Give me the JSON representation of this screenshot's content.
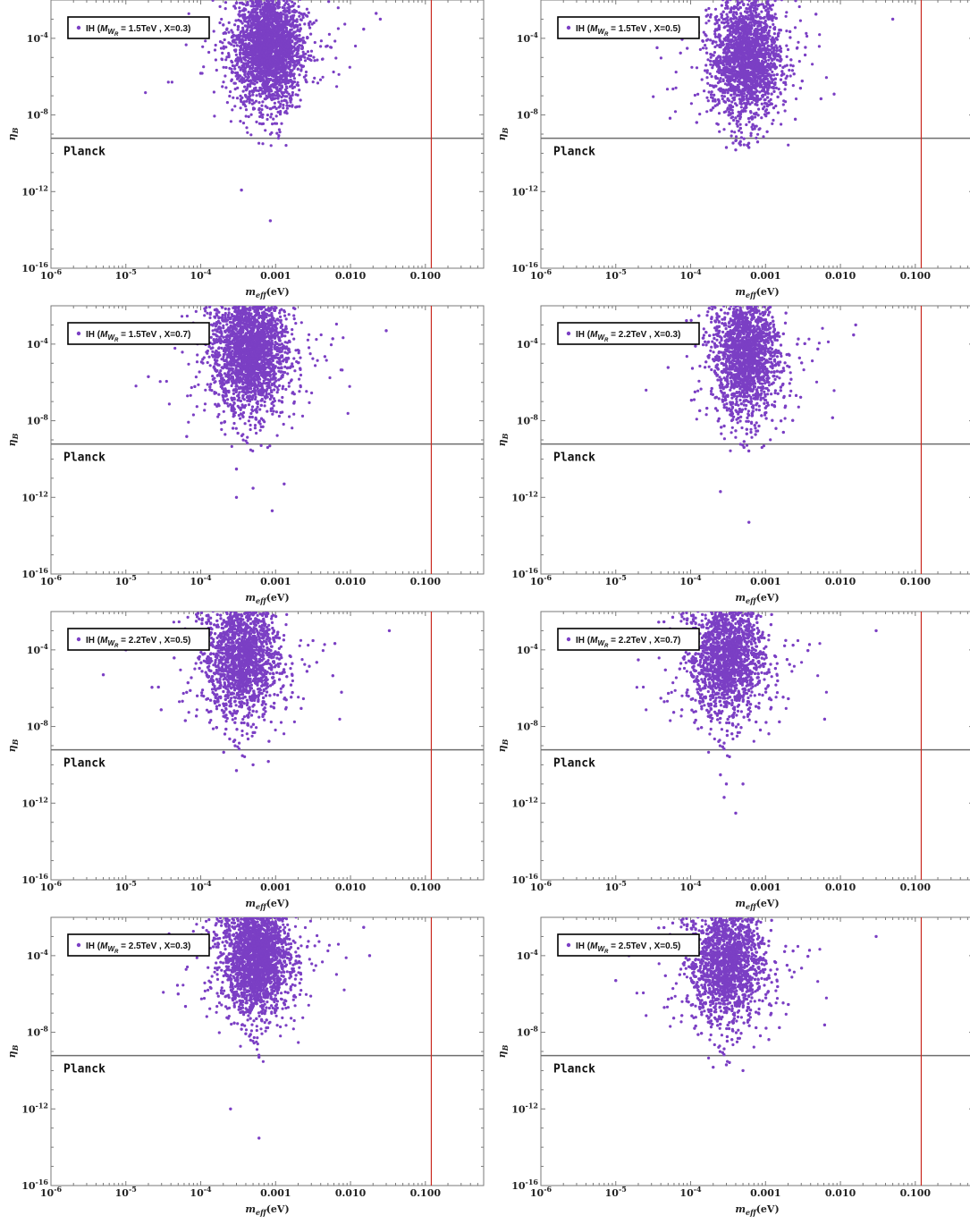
{
  "figure": {
    "colors": {
      "points": "#7b3fc4",
      "frame": "#7a7a7a",
      "planck_line": "#6e6e6e",
      "vertical_line": "#c8281e",
      "legend_border": "#000000"
    },
    "axes": {
      "x_scale": "log",
      "y_scale": "log",
      "x_ticks": [
        "10^-6",
        "10^-5",
        "10^-4",
        "0.001",
        "0.010",
        "0.100"
      ],
      "y_ticks": [
        "10^-4",
        "10^-8",
        "10^-12",
        "10^-16"
      ],
      "xlabel": "m_eff (eV)",
      "ylabel": "η_B",
      "xlim": [
        1e-06,
        0.6
      ],
      "ylim": [
        1e-16,
        0.01
      ]
    },
    "reference": {
      "planck_label": "Planck",
      "planck_eta_b": 6.1e-10,
      "vertical_x": 0.12
    }
  },
  "chart_data": [
    {
      "type": "scatter",
      "legend": {
        "pre": "IH (",
        "m": "M",
        "w": "W",
        "r": "R",
        "post": " = 1.5TeV , X=0.3)"
      },
      "series": [
        {
          "name": "IH (M_WR = 1.5TeV , X=0.3)",
          "cloud": {
            "x_center": 0.0008,
            "x_spread_dex": 0.22,
            "y_center": 3e-05,
            "y_spread_dex": 1.5
          },
          "outliers": [
            [
              0.00035,
              1.2e-12
            ],
            [
              0.00085,
              3e-14
            ],
            [
              0.0004,
              1e-07
            ],
            [
              0.022,
              0.002
            ],
            [
              0.025,
              0.001
            ],
            [
              0.015,
              0.0003
            ],
            [
              0.0001,
              1.5e-06
            ],
            [
              0.0002,
              0.0005
            ]
          ]
        }
      ]
    },
    {
      "type": "scatter",
      "legend": {
        "pre": "IH (",
        "m": "M",
        "w": "W",
        "r": "R",
        "post": " = 1.5TeV , X=0.5)"
      },
      "series": [
        {
          "name": "IH (M_WR = 1.5TeV , X=0.5)",
          "cloud": {
            "x_center": 0.00055,
            "x_spread_dex": 0.22,
            "y_center": 1e-05,
            "y_spread_dex": 1.6
          },
          "outliers": [
            [
              0.05,
              0.001
            ],
            [
              9e-05,
              3e-05
            ],
            [
              7e-05,
              0.0002
            ],
            [
              0.0003,
              2e-10
            ],
            [
              0.0004,
              1.5e-10
            ],
            [
              0.0055,
              7e-08
            ],
            [
              0.0025,
              6e-09
            ],
            [
              0.0006,
              2e-10
            ]
          ]
        }
      ]
    },
    {
      "type": "scatter",
      "legend": {
        "pre": "IH (",
        "m": "M",
        "w": "W",
        "r": "R",
        "post": " = 1.5TeV , X=0.7)"
      },
      "series": [
        {
          "name": "IH (M_WR = 1.5TeV , X=0.7)",
          "cloud": {
            "x_center": 0.00045,
            "x_spread_dex": 0.25,
            "y_center": 5e-05,
            "y_spread_dex": 1.6
          },
          "outliers": [
            [
              0.0003,
              1e-12
            ],
            [
              0.0005,
              3e-12
            ],
            [
              0.0009,
              2e-13
            ],
            [
              0.0013,
              5e-12
            ],
            [
              0.0003,
              3e-11
            ],
            [
              0.03,
              0.0005
            ],
            [
              2e-05,
              2e-06
            ],
            [
              6.5e-05,
              1.5e-09
            ]
          ]
        }
      ]
    },
    {
      "type": "scatter",
      "legend": {
        "pre": "IH (",
        "m": "M",
        "w": "W",
        "r": "R",
        "post": " = 2.2TeV , X=0.3)"
      },
      "series": [
        {
          "name": "IH (M_WR = 2.2TeV , X=0.3)",
          "cloud": {
            "x_center": 0.00055,
            "x_spread_dex": 0.22,
            "y_center": 3e-05,
            "y_spread_dex": 1.6
          },
          "outliers": [
            [
              0.00025,
              2e-12
            ],
            [
              0.0006,
              5e-14
            ],
            [
              5e-05,
              6e-06
            ],
            [
              0.015,
              0.0003
            ],
            [
              0.016,
              0.001
            ],
            [
              0.0004,
              3e-09
            ]
          ]
        }
      ]
    },
    {
      "type": "scatter",
      "legend": {
        "pre": "IH (",
        "m": "M",
        "w": "W",
        "r": "R",
        "post": " = 2.2TeV , X=0.5)"
      },
      "series": [
        {
          "name": "IH (M_WR = 2.2TeV , X=0.5)",
          "cloud": {
            "x_center": 0.00035,
            "x_spread_dex": 0.25,
            "y_center": 5e-05,
            "y_spread_dex": 1.6
          },
          "outliers": [
            [
              4e-06,
              0.00025
            ],
            [
              5e-06,
              5e-06
            ],
            [
              1e-05,
              0.0001
            ],
            [
              0.033,
              0.001
            ],
            [
              0.0003,
              5e-11
            ],
            [
              0.0005,
              1e-10
            ],
            [
              0.0008,
              1.5e-10
            ]
          ]
        }
      ]
    },
    {
      "type": "scatter",
      "legend": {
        "pre": "IH (",
        "m": "M",
        "w": "W",
        "r": "R",
        "post": " = 2.2TeV , X=0.7)"
      },
      "series": [
        {
          "name": "IH (M_WR = 2.2TeV , X=0.7)",
          "cloud": {
            "x_center": 0.0003,
            "x_spread_dex": 0.25,
            "y_center": 5e-05,
            "y_spread_dex": 1.6
          },
          "outliers": [
            [
              0.00025,
              3e-11
            ],
            [
              0.00028,
              2e-12
            ],
            [
              0.0003,
              1e-11
            ],
            [
              0.0004,
              3e-13
            ],
            [
              0.0005,
              1e-11
            ],
            [
              2e-05,
              3e-05
            ],
            [
              4e-05,
              3e-07
            ],
            [
              0.03,
              0.001
            ]
          ]
        }
      ]
    },
    {
      "type": "scatter",
      "legend": {
        "pre": "IH (",
        "m": "M",
        "w": "W",
        "r": "R",
        "post": " = 2.5TeV , X=0.3)"
      },
      "series": [
        {
          "name": "IH (M_WR = 2.5TeV , X=0.3)",
          "cloud": {
            "x_center": 0.00055,
            "x_spread_dex": 0.22,
            "y_center": 0.0001,
            "y_spread_dex": 1.5
          },
          "outliers": [
            [
              0.00025,
              1e-12
            ],
            [
              0.0006,
              3e-14
            ],
            [
              5e-05,
              1e-06
            ],
            [
              0.018,
              0.0001
            ],
            [
              0.015,
              0.003
            ],
            [
              0.0006,
              5e-10
            ]
          ]
        }
      ]
    },
    {
      "type": "scatter",
      "legend": {
        "pre": "IH (",
        "m": "M",
        "w": "W",
        "r": "R",
        "post": " = 2.5TeV , X=0.5)"
      },
      "series": [
        {
          "name": "IH (M_WR = 2.5TeV , X=0.5)",
          "cloud": {
            "x_center": 0.0003,
            "x_spread_dex": 0.25,
            "y_center": 5e-05,
            "y_spread_dex": 1.6
          },
          "outliers": [
            [
              1.5e-05,
              0.0001
            ],
            [
              1e-05,
              5e-06
            ],
            [
              0.03,
              0.001
            ],
            [
              0.0003,
              2e-10
            ],
            [
              0.0005,
              1e-10
            ],
            [
              0.0002,
              1.5e-10
            ]
          ]
        }
      ]
    }
  ]
}
